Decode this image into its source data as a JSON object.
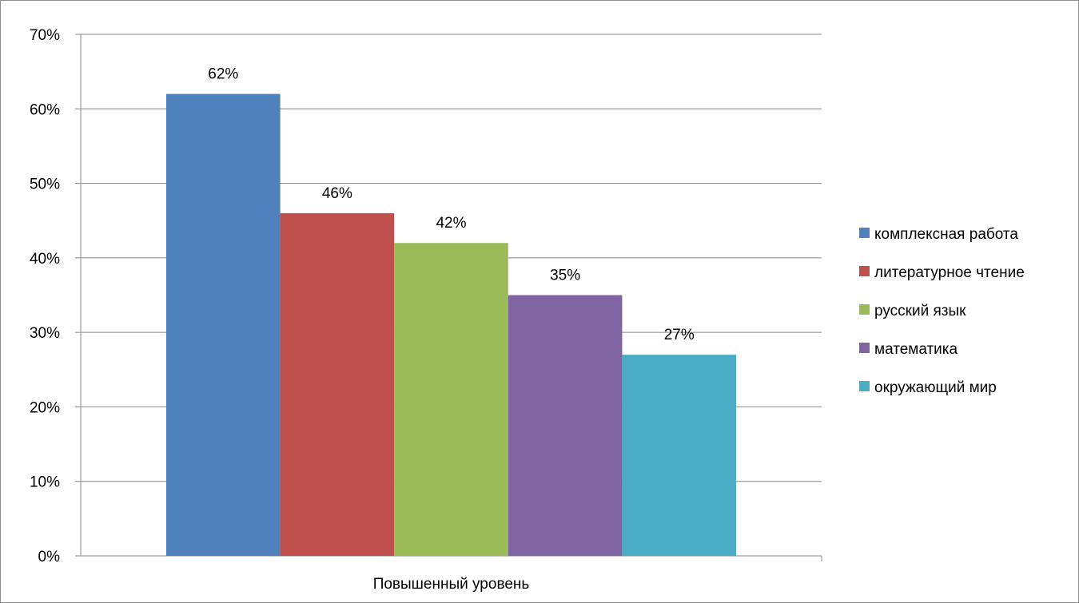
{
  "chart_data": {
    "type": "bar",
    "categories": [
      "Повышенный уровень"
    ],
    "series": [
      {
        "name": "комплексная работа",
        "values": [
          0.62
        ],
        "label": "62%",
        "color": "#4F81BD"
      },
      {
        "name": "литературное чтение",
        "values": [
          0.46
        ],
        "label": "46%",
        "color": "#C0504D"
      },
      {
        "name": "русский язык",
        "values": [
          0.42
        ],
        "label": "42%",
        "color": "#9BBB59"
      },
      {
        "name": "математика",
        "values": [
          0.35
        ],
        "label": "35%",
        "color": "#8064A2"
      },
      {
        "name": "окружающий мир",
        "values": [
          0.27
        ],
        "label": "27%",
        "color": "#4BACC6"
      }
    ],
    "ylim": [
      0,
      0.7
    ],
    "yticks": [
      {
        "value": 0,
        "label": "0%"
      },
      {
        "value": 0.1,
        "label": "10%"
      },
      {
        "value": 0.2,
        "label": "20%"
      },
      {
        "value": 0.3,
        "label": "30%"
      },
      {
        "value": 0.4,
        "label": "40%"
      },
      {
        "value": 0.5,
        "label": "50%"
      },
      {
        "value": 0.6,
        "label": "60%"
      },
      {
        "value": 0.7,
        "label": "70%"
      }
    ],
    "grid": true,
    "legend_position": "right"
  }
}
